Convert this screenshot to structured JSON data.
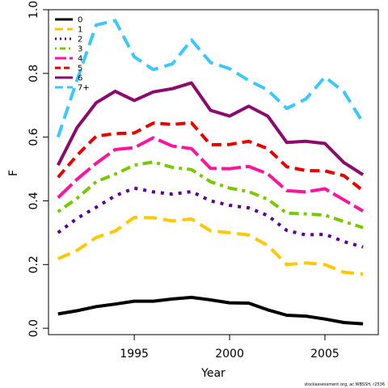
{
  "chart_data": {
    "type": "line",
    "xlabel": "Year",
    "ylabel": "F",
    "xlim": [
      1990.5,
      2007.8
    ],
    "ylim": [
      -0.02,
      1.0
    ],
    "xticks": [
      1995,
      2000,
      2005
    ],
    "yticks": [
      0.0,
      0.2,
      0.4,
      0.6,
      0.8,
      1.0
    ],
    "ytick_labels": [
      "0.0",
      "0.2",
      "0.4",
      "0.6",
      "0.8",
      "1.0"
    ],
    "legend_position": "top-left",
    "x": [
      1991,
      1992,
      1993,
      1994,
      1995,
      1996,
      1997,
      1998,
      1999,
      2000,
      2001,
      2002,
      2003,
      2004,
      2005,
      2006,
      2007
    ],
    "series": [
      {
        "name": "0",
        "color": "#000000",
        "dash": "solid",
        "values": [
          0.045,
          0.055,
          0.068,
          0.076,
          0.085,
          0.085,
          0.092,
          0.097,
          0.089,
          0.08,
          0.079,
          0.058,
          0.041,
          0.038,
          0.029,
          0.018,
          0.014
        ]
      },
      {
        "name": "1",
        "color": "#FFC800",
        "dash": "long",
        "values": [
          0.218,
          0.245,
          0.285,
          0.305,
          0.348,
          0.347,
          0.337,
          0.343,
          0.306,
          0.3,
          0.293,
          0.26,
          0.2,
          0.205,
          0.2,
          0.176,
          0.17
        ]
      },
      {
        "name": "2",
        "color": "#5A0096",
        "dash": "dot",
        "values": [
          0.3,
          0.345,
          0.38,
          0.416,
          0.44,
          0.428,
          0.421,
          0.429,
          0.4,
          0.386,
          0.378,
          0.354,
          0.307,
          0.293,
          0.295,
          0.272,
          0.255
        ]
      },
      {
        "name": "3",
        "color": "#78C800",
        "dash": "dotdash",
        "values": [
          0.366,
          0.408,
          0.46,
          0.484,
          0.512,
          0.522,
          0.505,
          0.498,
          0.46,
          0.44,
          0.429,
          0.405,
          0.361,
          0.359,
          0.355,
          0.335,
          0.316
        ]
      },
      {
        "name": "4",
        "color": "#FF14A0",
        "dash": "longsolid",
        "values": [
          0.41,
          0.468,
          0.518,
          0.561,
          0.567,
          0.598,
          0.572,
          0.564,
          0.502,
          0.501,
          0.508,
          0.485,
          0.432,
          0.428,
          0.438,
          0.403,
          0.368
        ]
      },
      {
        "name": "5",
        "color": "#E80000",
        "dash": "medium",
        "values": [
          0.474,
          0.543,
          0.603,
          0.611,
          0.613,
          0.644,
          0.64,
          0.645,
          0.576,
          0.577,
          0.587,
          0.564,
          0.507,
          0.495,
          0.494,
          0.479,
          0.432
        ]
      },
      {
        "name": "6",
        "color": "#8C0A6E",
        "dash": "solid",
        "values": [
          0.512,
          0.63,
          0.708,
          0.744,
          0.715,
          0.742,
          0.752,
          0.77,
          0.684,
          0.666,
          0.697,
          0.666,
          0.583,
          0.587,
          0.58,
          0.52,
          0.482
        ]
      },
      {
        "name": "7+",
        "color": "#3CC8FF",
        "dash": "long",
        "values": [
          0.6,
          0.78,
          0.952,
          0.966,
          0.852,
          0.812,
          0.83,
          0.905,
          0.834,
          0.815,
          0.778,
          0.748,
          0.69,
          0.72,
          0.789,
          0.742,
          0.645
        ]
      }
    ]
  },
  "credit": "stockassessment.org, ac WBSSH, r2536"
}
